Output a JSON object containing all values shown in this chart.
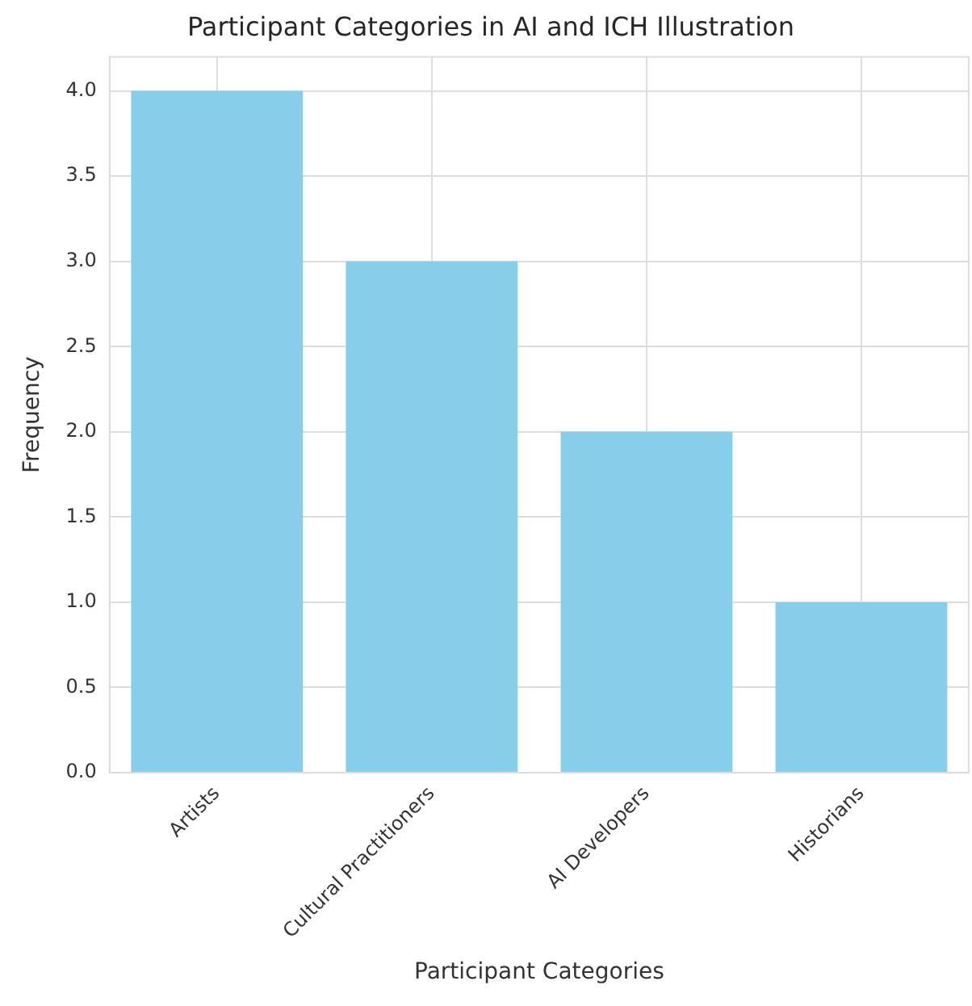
{
  "chart_data": {
    "type": "bar",
    "title": "Participant Categories in AI and ICH Illustration",
    "xlabel": "Participant Categories",
    "ylabel": "Frequency",
    "categories": [
      "Artists",
      "Cultural Practitioners",
      "AI Developers",
      "Historians"
    ],
    "values": [
      4,
      3,
      2,
      1
    ],
    "color": "#87ceeb",
    "ylim": [
      0,
      4.2
    ],
    "yticks": [
      {
        "value": 0,
        "label": "0.0"
      },
      {
        "value": 0.5,
        "label": "0.5"
      },
      {
        "value": 1,
        "label": "1.0"
      },
      {
        "value": 1.5,
        "label": "1.5"
      },
      {
        "value": 2,
        "label": "2.0"
      },
      {
        "value": 2.5,
        "label": "2.5"
      },
      {
        "value": 3,
        "label": "3.0"
      },
      {
        "value": 3.5,
        "label": "3.5"
      },
      {
        "value": 4,
        "label": "4.0"
      }
    ],
    "grid": true
  }
}
